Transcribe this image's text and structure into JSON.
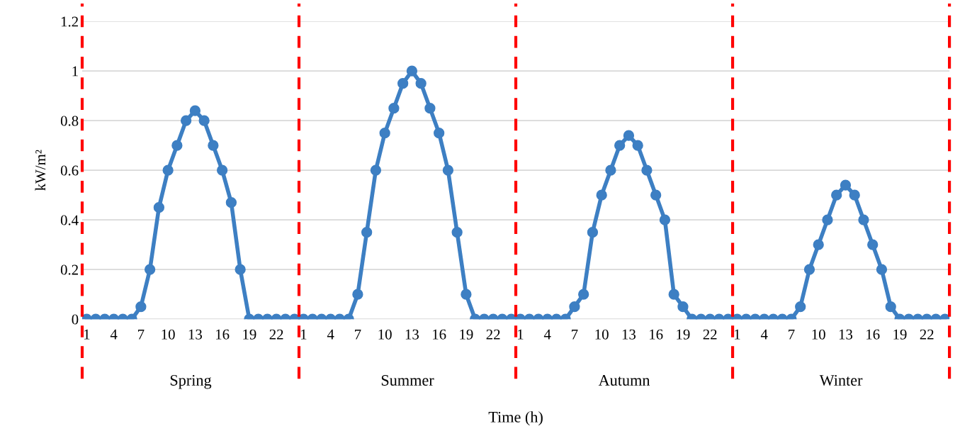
{
  "chart_data": {
    "type": "line",
    "xlabel": "Time (h)",
    "ylabel": "kW/m²",
    "categories": [
      "1",
      null,
      null,
      "4",
      null,
      null,
      "7",
      null,
      null,
      "10",
      null,
      null,
      "13",
      null,
      null,
      "16",
      null,
      null,
      "19",
      null,
      null,
      "22",
      null,
      null,
      "1",
      null,
      null,
      "4",
      null,
      null,
      "7",
      null,
      null,
      "10",
      null,
      null,
      "13",
      null,
      null,
      "16",
      null,
      null,
      "19",
      null,
      null,
      "22",
      null,
      null,
      "1",
      null,
      null,
      "4",
      null,
      null,
      "7",
      null,
      null,
      "10",
      null,
      null,
      "13",
      null,
      null,
      "16",
      null,
      null,
      "19",
      null,
      null,
      "22",
      null,
      null,
      "1",
      null,
      null,
      "4",
      null,
      null,
      "7",
      null,
      null,
      "10",
      null,
      null,
      "13",
      null,
      null,
      "16",
      null,
      null,
      "19",
      null,
      null,
      "22",
      null,
      null
    ],
    "series": [
      {
        "color": "#3d7fc3",
        "values": [
          0,
          0,
          0,
          0,
          0,
          0,
          0.05,
          0.2,
          0.45,
          0.6,
          0.7,
          0.8,
          0.84,
          0.8,
          0.7,
          0.6,
          0.47,
          0.2,
          0,
          0,
          0,
          0,
          0,
          0,
          0,
          0,
          0,
          0,
          0,
          0,
          0.1,
          0.35,
          0.6,
          0.75,
          0.85,
          0.95,
          1.0,
          0.95,
          0.85,
          0.75,
          0.6,
          0.35,
          0.1,
          0,
          0,
          0,
          0,
          0,
          0,
          0,
          0,
          0,
          0,
          0,
          0.05,
          0.1,
          0.35,
          0.5,
          0.6,
          0.7,
          0.74,
          0.7,
          0.6,
          0.5,
          0.4,
          0.1,
          0.05,
          0,
          0,
          0,
          0,
          0,
          0,
          0,
          0,
          0,
          0,
          0,
          0,
          0.05,
          0.2,
          0.3,
          0.4,
          0.5,
          0.54,
          0.5,
          0.4,
          0.3,
          0.2,
          0.05,
          0,
          0,
          0,
          0,
          0,
          0
        ]
      }
    ],
    "ylim": [
      0,
      1.2
    ],
    "yticks": [
      0,
      0.2,
      0.4,
      0.6,
      0.8,
      1,
      1.2
    ],
    "grid": "y",
    "marker": "circle",
    "line_style": "solid",
    "annotations": [
      "Spring",
      "Summer",
      "Autumn",
      "Winter"
    ]
  }
}
